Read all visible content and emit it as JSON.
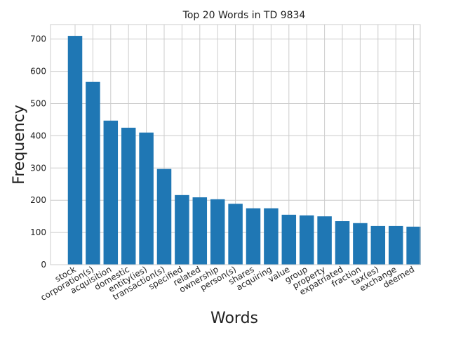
{
  "chart_data": {
    "type": "bar",
    "title": "Top 20 Words in TD 9834",
    "xlabel": "Words",
    "ylabel": "Frequency",
    "categories": [
      "stock",
      "corporation(s)",
      "acquisition",
      "domestic",
      "entity(ies)",
      "transaction(s)",
      "specified",
      "related",
      "ownership",
      "person(s)",
      "shares",
      "acquiring",
      "value",
      "group",
      "property",
      "expatriated",
      "fraction",
      "tax(es)",
      "exchange",
      "deemed"
    ],
    "values": [
      710,
      567,
      447,
      425,
      410,
      297,
      216,
      209,
      203,
      189,
      175,
      175,
      155,
      153,
      150,
      135,
      129,
      120,
      120,
      118
    ],
    "ylim": [
      0,
      745
    ],
    "yticks": [
      0,
      100,
      200,
      300,
      400,
      500,
      600,
      700
    ],
    "grid": true,
    "bar_color": "#1f77b4"
  }
}
